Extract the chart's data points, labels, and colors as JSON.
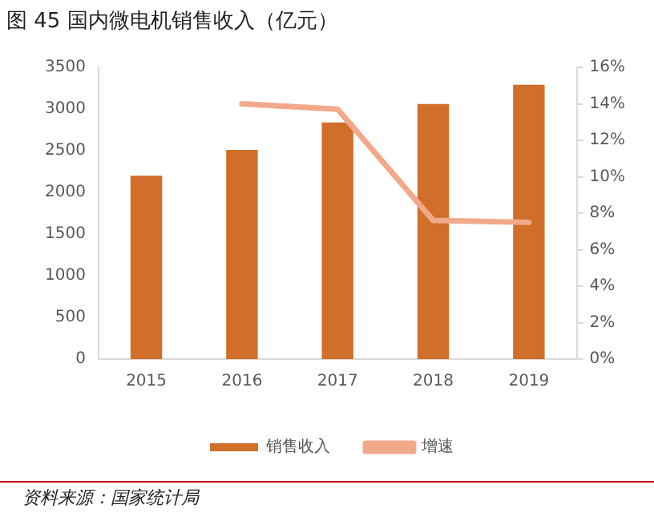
{
  "chart_data": {
    "type": "bar",
    "title": "图 45 国内微电机销售收入（亿元）",
    "categories": [
      "2015",
      "2016",
      "2017",
      "2018",
      "2019"
    ],
    "series": [
      {
        "name": "销售收入",
        "color": "#d06e2a",
        "values": [
          2200,
          2510,
          2840,
          3060,
          3290
        ]
      },
      {
        "name": "增速",
        "type": "line",
        "axis": "y2",
        "color": "#f2a98a",
        "values": [
          null,
          14.0,
          13.7,
          7.6,
          7.5
        ]
      }
    ],
    "ylim": [
      0,
      3500
    ],
    "yticks": [
      0,
      500,
      1000,
      1500,
      2000,
      2500,
      3000,
      3500
    ],
    "y2lim": [
      0,
      16
    ],
    "y2ticks": [
      {
        "value": 0,
        "label": "0%"
      },
      {
        "value": 2,
        "label": "2%"
      },
      {
        "value": 4,
        "label": "4%"
      },
      {
        "value": 6,
        "label": "6%"
      },
      {
        "value": 8,
        "label": "8%"
      },
      {
        "value": 10,
        "label": "10%"
      },
      {
        "value": 12,
        "label": "12%"
      },
      {
        "value": 14,
        "label": "14%"
      },
      {
        "value": 16,
        "label": "16%"
      }
    ],
    "grid": false,
    "legend": "bottom",
    "marker": "none",
    "annotations": [
      "资料来源：国家统计局"
    ]
  }
}
